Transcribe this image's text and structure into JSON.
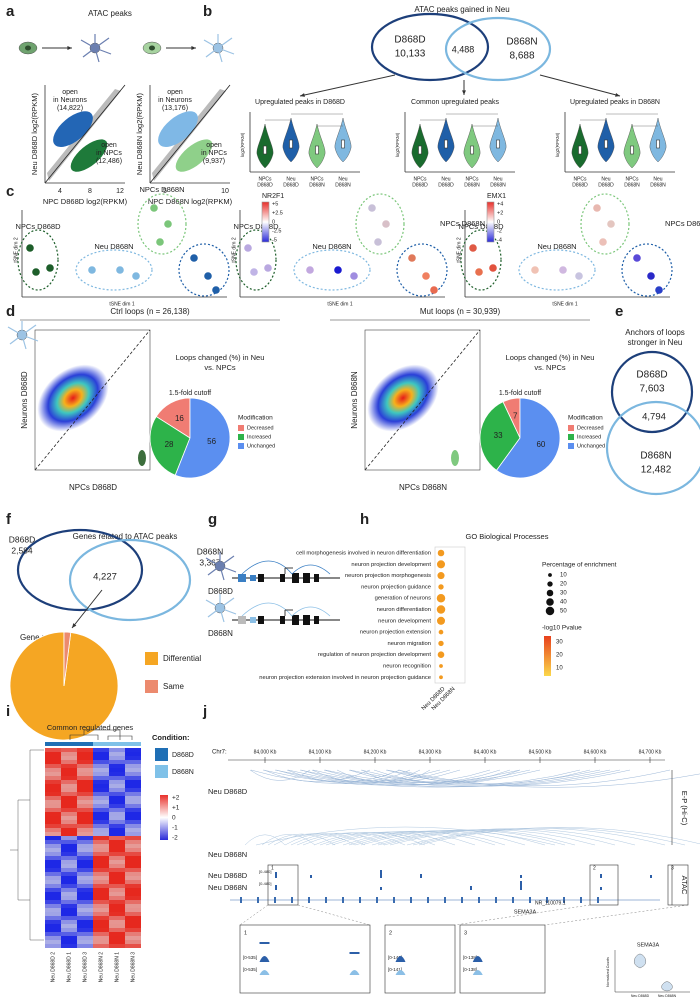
{
  "a": {
    "label": "a",
    "title": "ATAC peaks",
    "left": {
      "top_label": [
        "open",
        "in Neurons",
        "(14,822)"
      ],
      "bottom_label": [
        "open",
        "in NPCs",
        "(12,486)"
      ],
      "xlabel": "NPC D868D log2(RPKM)",
      "ylabel": "Neu D868D log2(RPKM)",
      "xticks": [
        "4",
        "8",
        "12"
      ]
    },
    "right": {
      "top_label": [
        "open",
        "in Neurons",
        "(13,176)"
      ],
      "bottom_label": [
        "open",
        "in NPCs",
        "(9,937)"
      ],
      "xlabel": "NPC D868N log2(RPKM)",
      "ylabel": "Neu D868N log2(RPKM)",
      "xticks": [
        "5",
        "10"
      ]
    }
  },
  "b": {
    "label": "b",
    "title": "ATAC peaks gained in Neu",
    "venn": {
      "left": "D868D",
      "left_count": "10,133",
      "overlap": "4,488",
      "right": "D868N",
      "right_count": "8,688"
    },
    "violin_titles": [
      "Upregulated peaks in D868D",
      "Common upregulated peaks",
      "Upregulated peaks in D868N"
    ],
    "groups": [
      [
        "NPCs",
        "D868D"
      ],
      [
        "Neu",
        "D868D"
      ],
      [
        "NPCs",
        "D868N"
      ],
      [
        "Neu",
        "D868N"
      ]
    ],
    "ylabel": "log2(RPKM)"
  },
  "c": {
    "label": "c",
    "clusters": [
      "NPCs D868D",
      "Neu D868N",
      "NPCs D868N"
    ],
    "xlabel": "tSNE dim 1",
    "ylabel": "tSNE dim 2",
    "genes": [
      {
        "name": "NR2F1",
        "ticks": [
          "+5",
          "+2.5",
          "0",
          "-2.5",
          "-5"
        ]
      },
      {
        "name": "EMX1",
        "ticks": [
          "+4",
          "+2",
          "0",
          "-2",
          "-4"
        ]
      }
    ]
  },
  "d": {
    "label": "d",
    "legend_title": "Modification",
    "legend": [
      "Decreased",
      "Increased",
      "Unchanged"
    ],
    "colors": [
      "#f07c73",
      "#2db34a",
      "#5b8ff0"
    ],
    "panels": [
      {
        "title": "Ctrl loops (n = 26,138)",
        "ylabel": "Neurons D868D",
        "xlabel": "NPCs D868D",
        "pie_title": [
          "Loops changed (%) in Neu",
          "vs. NPCs"
        ],
        "cutoff": "1.5-fold cutoff",
        "values": [
          16,
          28,
          56
        ]
      },
      {
        "title": "Mut loops (n = 30,939)",
        "ylabel": "Neurons D868N",
        "xlabel": "NPCs D868N",
        "pie_title": [
          "Loops changed (%) in Neu",
          "vs. NPCs"
        ],
        "cutoff": "1.5-fold cutoff",
        "values": [
          7,
          33,
          60
        ]
      }
    ]
  },
  "e": {
    "label": "e",
    "title": [
      "Anchors of loops",
      "stronger in Neu"
    ],
    "top": "D868D",
    "top_count": "7,603",
    "overlap": "4,794",
    "bottom": "D868N",
    "bottom_count": "12,482"
  },
  "f": {
    "label": "f",
    "title": "Genes related to ATAC peaks",
    "left": "D868D",
    "left_count": "2,584",
    "overlap": "4,227",
    "right": "D868N",
    "right_count": "3,367",
    "pie_title": "Gene regulation",
    "pie": {
      "values": [
        98,
        2
      ],
      "labels": [
        "Differential",
        "Same"
      ],
      "colors": [
        "#f5a623",
        "#ec8a6e"
      ]
    }
  },
  "g": {
    "label": "g",
    "tracks": [
      "D868D",
      "D868N"
    ]
  },
  "h": {
    "label": "h",
    "title": "GO Biological Processes",
    "terms": [
      "cell morphogenesis involved in neuron differentiation",
      "neuron projection development",
      "neuron projection morphogenesis",
      "neuron projection guidance",
      "generation of neurons",
      "neuron differentiation",
      "neuron development",
      "neuron projection extension",
      "neuron migration",
      "regulation of neuron projection development",
      "neuron recognition",
      "neuron projection extension involved in neuron projection guidance"
    ],
    "enrichment": [
      30,
      45,
      35,
      20,
      50,
      50,
      45,
      15,
      20,
      30,
      10,
      10
    ],
    "dot_color": "#f39a1f",
    "columns": [
      "Neu D868D",
      "Neu D868N"
    ],
    "size_title": "Percentage of enrichment",
    "size_ticks": [
      10,
      20,
      30,
      40,
      50
    ],
    "color_title": "-log10 Pvalue",
    "color_ticks": [
      30,
      20,
      10
    ]
  },
  "i": {
    "label": "i",
    "title": "Common regulated genes",
    "legend_title": "Condition:",
    "conditions": [
      "D868D",
      "D868N"
    ],
    "condition_colors": [
      "#1f6fb5",
      "#7fc1e8"
    ],
    "scale_ticks": [
      "+2",
      "+1",
      "0",
      "-1",
      "-2"
    ],
    "samples": [
      "Neu D868D 2",
      "Neu D868D 1",
      "Neu D868D 3",
      "Neu D868N 2",
      "Neu D868N 1",
      "Neu D868N 3"
    ]
  },
  "j": {
    "label": "j",
    "chrom": "Chr7:",
    "ticks": [
      "84,000 Kb",
      "84,100 Kb",
      "84,200 Kb",
      "84,300 Kb",
      "84,400 Kb",
      "84,500 Kb",
      "84,600 Kb",
      "84,700 Kb"
    ],
    "arc_tracks": [
      "Neu D868D",
      "Neu D868N"
    ],
    "atac_tracks": [
      "Neu D868D",
      "Neu D868N"
    ],
    "hic_label": "E-P (Hi-C)",
    "atac_label": "ATAC",
    "genes": [
      "SEMA3A",
      "NR_110079.1"
    ],
    "zooms": [
      "1",
      "2",
      "3"
    ],
    "ranges": [
      "[0-480]",
      "[0-480]"
    ],
    "zoom_ranges": [
      [
        "[0-535]",
        "[0-535]"
      ],
      [
        "[0-141]",
        "[0-141]"
      ],
      [
        "[0-138]",
        "[0-138]"
      ]
    ],
    "box_gene": "SEMA3A",
    "box_ylabel": "Normalized Counts",
    "box_groups": [
      "Neu D868D",
      "Neu D868N"
    ]
  }
}
